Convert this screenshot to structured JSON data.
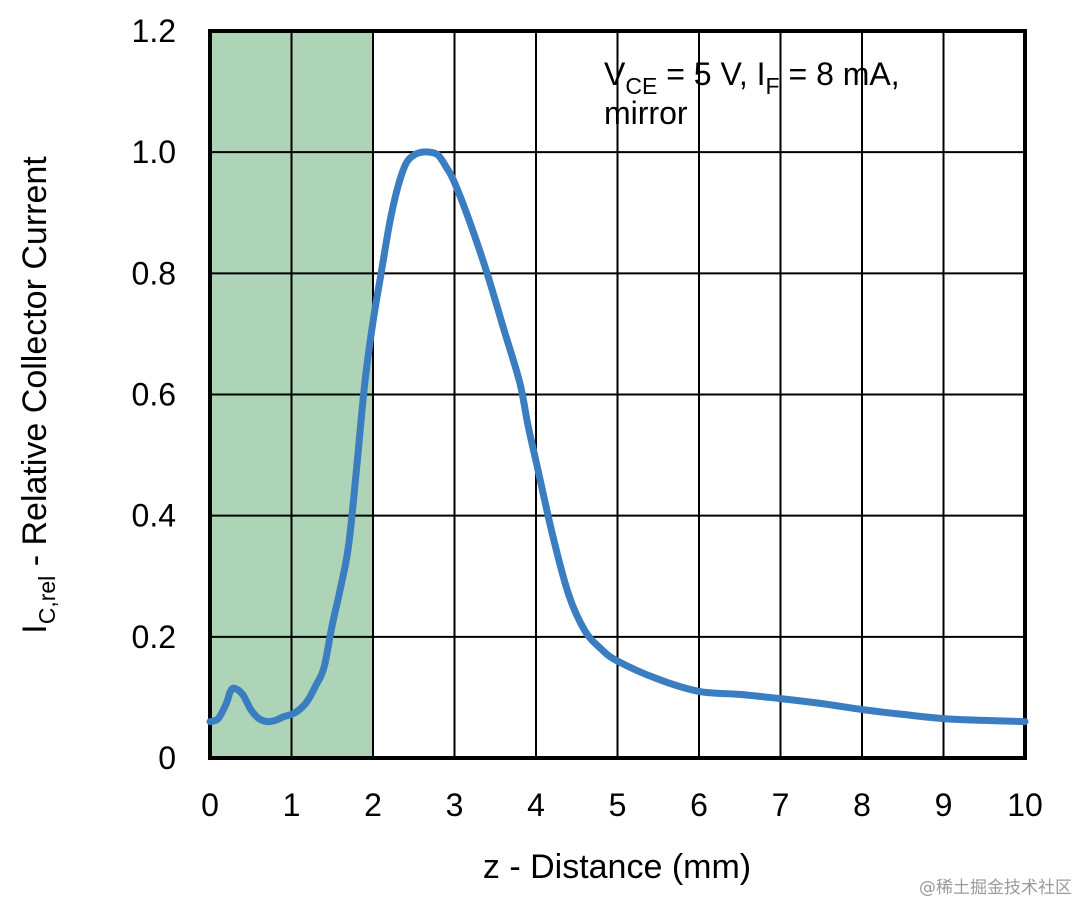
{
  "chart_data": {
    "type": "line",
    "title": "",
    "xlabel": "z - Distance (mm)",
    "ylabel": {
      "main": "I",
      "sub": "C,rel",
      "rest": " - Relative Collector Current"
    },
    "xlim": [
      0,
      10
    ],
    "ylim": [
      0,
      1.2
    ],
    "x_ticks": [
      "0",
      "1",
      "2",
      "3",
      "4",
      "5",
      "6",
      "7",
      "8",
      "9",
      "10"
    ],
    "y_ticks": [
      "0",
      "0.2",
      "0.4",
      "0.6",
      "0.8",
      "1.0",
      "1.2"
    ],
    "grid": true,
    "legend": "none",
    "highlight_region": {
      "x": [
        0,
        2
      ],
      "color": "#add4b6"
    },
    "annotation": {
      "line1": [
        {
          "text": "V",
          "sub": false
        },
        {
          "text": "CE",
          "sub": true
        },
        {
          "text": " = 5 V, I",
          "sub": false
        },
        {
          "text": "F",
          "sub": true
        },
        {
          "text": " = 8 mA,",
          "sub": false
        }
      ],
      "line2": "mirror"
    },
    "series": [
      {
        "color": "#3a7dc1",
        "x": [
          0,
          0.1,
          0.2,
          0.25,
          0.3,
          0.4,
          0.5,
          0.6,
          0.7,
          0.8,
          0.9,
          1.0,
          1.1,
          1.2,
          1.3,
          1.4,
          1.5,
          1.6,
          1.7,
          1.8,
          1.9,
          2.0,
          2.1,
          2.2,
          2.3,
          2.4,
          2.5,
          2.6,
          2.7,
          2.8,
          2.9,
          3.0,
          3.2,
          3.4,
          3.6,
          3.8,
          3.9,
          4.0,
          4.2,
          4.4,
          4.6,
          4.8,
          5.0,
          5.5,
          6.0,
          6.5,
          7.0,
          7.5,
          8.0,
          8.5,
          9.0,
          9.5,
          10.0
        ],
        "y": [
          0.06,
          0.065,
          0.09,
          0.11,
          0.115,
          0.105,
          0.08,
          0.065,
          0.06,
          0.062,
          0.068,
          0.072,
          0.08,
          0.095,
          0.12,
          0.15,
          0.22,
          0.28,
          0.35,
          0.48,
          0.62,
          0.72,
          0.8,
          0.88,
          0.94,
          0.98,
          0.995,
          1.0,
          1.0,
          0.995,
          0.975,
          0.95,
          0.88,
          0.8,
          0.71,
          0.62,
          0.55,
          0.49,
          0.37,
          0.27,
          0.21,
          0.18,
          0.16,
          0.13,
          0.11,
          0.105,
          0.098,
          0.09,
          0.08,
          0.072,
          0.065,
          0.062,
          0.06
        ]
      }
    ]
  },
  "watermark": "@稀土掘金技术社区"
}
